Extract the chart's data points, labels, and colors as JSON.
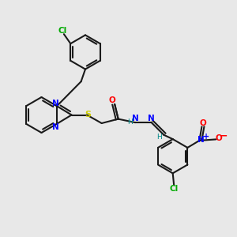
{
  "background_color": "#e8e8e8",
  "bond_color": "#1a1a1a",
  "atom_colors": {
    "N": "#0000ff",
    "O": "#ff0000",
    "S": "#cccc00",
    "Cl": "#00aa00",
    "H": "#008888",
    "C": "#1a1a1a"
  },
  "lw": 1.5,
  "figsize": [
    3.0,
    3.0
  ],
  "dpi": 100
}
